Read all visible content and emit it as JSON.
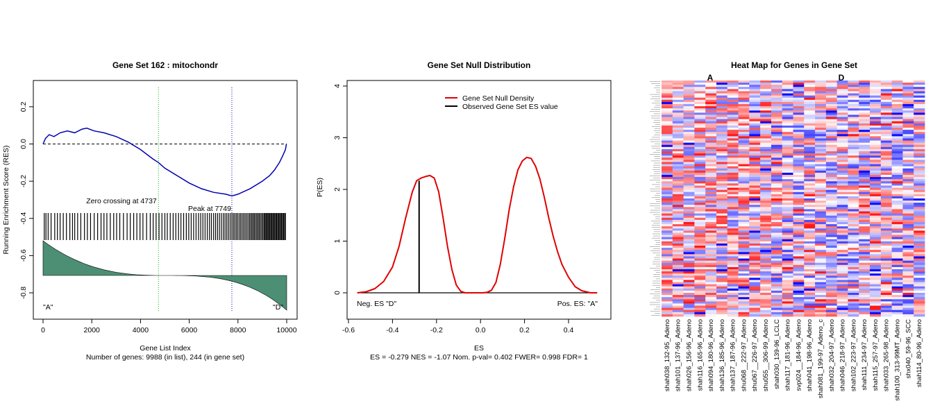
{
  "chart_data": [
    {
      "type": "line",
      "title": "Gene Set  162 : mitochondr",
      "xlabel": "Gene List Index",
      "subxlabel": "Number of genes: 9988 (in list), 244 (in gene set)",
      "ylabel": "Running Enrichment Score (RES)",
      "xlim": [
        0,
        10000
      ],
      "ylim": [
        -0.85,
        0.3
      ],
      "xticks": [
        "0",
        "2000",
        "4000",
        "6000",
        "8000",
        "10000"
      ],
      "yticks": [
        "-0.8",
        "-0.6",
        "-0.4",
        "-0.2",
        "0.0",
        "0.2"
      ],
      "series": [
        {
          "x": [
            0,
            100,
            250,
            450,
            700,
            1000,
            1300,
            1600,
            1800,
            2100,
            2500,
            3000,
            3500,
            4000,
            4500,
            4737,
            5000,
            5500,
            6000,
            6500,
            7000,
            7500,
            7749,
            8000,
            8500,
            9000,
            9300,
            9500,
            9700,
            9850,
            9950,
            9988
          ],
          "y": [
            0.0,
            0.03,
            0.05,
            0.04,
            0.06,
            0.07,
            0.06,
            0.08,
            0.085,
            0.07,
            0.06,
            0.04,
            0.01,
            -0.03,
            -0.08,
            -0.1,
            -0.13,
            -0.17,
            -0.21,
            -0.24,
            -0.26,
            -0.27,
            -0.279,
            -0.27,
            -0.24,
            -0.2,
            -0.17,
            -0.14,
            -0.1,
            -0.06,
            -0.03,
            0.0
          ]
        }
      ],
      "hits": [
        50,
        120,
        210,
        330,
        480,
        590,
        700,
        830,
        960,
        1100,
        1210,
        1300,
        1420,
        1550,
        1700,
        1820,
        1950,
        2100,
        2240,
        2380,
        2500,
        2620,
        2760,
        2900,
        3020,
        3150,
        3300,
        3450,
        3580,
        3720,
        3850,
        3980,
        4100,
        4250,
        4400,
        4520,
        4640,
        4760,
        4880,
        5000,
        5100,
        5220,
        5340,
        5450,
        5560,
        5660,
        5770,
        5880,
        5980,
        6080,
        6180,
        6280,
        6380,
        6470,
        6560,
        6650,
        6740,
        6830,
        6910,
        7000,
        7080,
        7160,
        7240,
        7320,
        7400,
        7470,
        7540,
        7610,
        7680,
        7749,
        7810,
        7870,
        7930,
        7990,
        8050,
        8110,
        8170,
        8230,
        8290,
        8350,
        8410,
        8470,
        8520,
        8570,
        8620,
        8670,
        8720,
        8770,
        8820,
        8870,
        8920,
        8970,
        9020,
        9070,
        9110,
        9150,
        9190,
        9230,
        9270,
        9310,
        9350,
        9390,
        9430,
        9470,
        9510,
        9550,
        9590,
        9630,
        9670,
        9710,
        9750,
        9790,
        9830,
        9870,
        9910,
        9950
      ],
      "zero_crossing": 4737,
      "peak": 7749,
      "annotations": {
        "zero_crossing_label": "Zero crossing at 4737",
        "peak_label": "Peak at 7749",
        "left_label": "\"A\"",
        "right_label": "\"D\""
      }
    },
    {
      "type": "line",
      "title": "Gene Set Null Distribution",
      "xlabel": "ES",
      "subxlabel": "ES = -0.279  NES = -1.07 Nom. p-val= 0.402 FWER= 0.998 FDR= 1",
      "ylabel": "P(ES)",
      "xlim": [
        -0.6,
        0.55
      ],
      "ylim": [
        -0.5,
        4.1
      ],
      "xticks": [
        "-0.6",
        "-0.4",
        "-0.2",
        "0.0",
        "0.2",
        "0.4"
      ],
      "yticks": [
        "0",
        "1",
        "2",
        "3",
        "4"
      ],
      "legend": [
        "Gene Set Null Density",
        "Observed Gene Set ES value"
      ],
      "series": [
        {
          "name": "Gene Set Null Density",
          "x": [
            -0.56,
            -0.52,
            -0.48,
            -0.44,
            -0.4,
            -0.37,
            -0.34,
            -0.31,
            -0.29,
            -0.27,
            -0.25,
            -0.23,
            -0.21,
            -0.19,
            -0.17,
            -0.15,
            -0.13,
            -0.11,
            -0.09,
            -0.07,
            -0.05,
            -0.03,
            -0.01,
            0.01,
            0.03,
            0.05,
            0.07,
            0.09,
            0.11,
            0.13,
            0.15,
            0.17,
            0.19,
            0.21,
            0.23,
            0.25,
            0.27,
            0.29,
            0.31,
            0.33,
            0.35,
            0.37,
            0.4,
            0.43,
            0.46,
            0.5,
            0.53
          ],
          "y": [
            0.0,
            0.02,
            0.08,
            0.22,
            0.5,
            0.9,
            1.45,
            1.95,
            2.17,
            2.22,
            2.25,
            2.27,
            2.22,
            1.95,
            1.45,
            0.9,
            0.45,
            0.15,
            0.03,
            0.0,
            0.0,
            0.0,
            0.0,
            0.0,
            0.01,
            0.05,
            0.2,
            0.55,
            1.05,
            1.6,
            2.05,
            2.38,
            2.55,
            2.62,
            2.6,
            2.45,
            2.2,
            1.85,
            1.45,
            1.1,
            0.8,
            0.55,
            0.3,
            0.12,
            0.04,
            0.0,
            0.0
          ]
        }
      ],
      "observed_es": -0.279,
      "observed_height": 2.17,
      "annotations": {
        "left_label": "Neg. ES \"D\"",
        "right_label": "Pos. ES: \"A\""
      }
    },
    {
      "type": "heatmap",
      "title": "Heat Map for Genes in Gene Set",
      "group_labels": [
        "A",
        "D"
      ],
      "columns": [
        "shah038_132-95_Adeno",
        "shah101_137-96_Adeno",
        "shah026_156-96_Adeno",
        "shah116_165-96_Adeno",
        "shah094_180-96_Adeno",
        "shah136_185-96_Adeno",
        "shah137_187-96_Adeno",
        "shu068__222-97_Adeno",
        "shu067__226-97_Adeno",
        "shu055__306-99_Adeno",
        "shah030_139-96_LCLC",
        "shah117_181-96_Adeno",
        "svp024__184-96_Adeno",
        "shah041_198-96_Adeno",
        "shah081_199-97_Adeno_c",
        "shah032_204-97_Adeno",
        "shah046_218-97_Adeno",
        "shah102_223-97_Adeno",
        "shah111_234-97_Adeno",
        "shah115_257-97_Adeno",
        "shah033_265-98_Adeno",
        "shah100_313-99MT_Adeno",
        "shx040_59-96_SCC",
        "shah114_80-96_Adeno"
      ],
      "n_rows": 110,
      "n_columns": 24,
      "colors": {
        "low": "#0000ff",
        "mid": "#ffffff",
        "high": "#ff0000"
      }
    }
  ]
}
